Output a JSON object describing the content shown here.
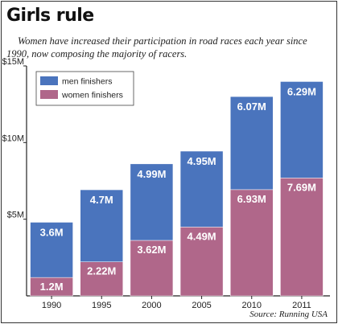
{
  "title": "Girls rule",
  "subtitle": "Women have increased their participation in road races each year since 1990, now composing the majority of racers.",
  "source": "Source: Running USA",
  "colors": {
    "men": "#4a74bd",
    "women": "#b0678a"
  },
  "chart_data": {
    "type": "bar",
    "stacked": true,
    "title": "Girls rule",
    "categories": [
      "1990",
      "1995",
      "2000",
      "2005",
      "2010",
      "2011"
    ],
    "series": [
      {
        "name": "women finishers",
        "values": [
          1.2,
          2.22,
          3.62,
          4.49,
          6.93,
          7.69
        ],
        "labels": [
          "1.2M",
          "2.22M",
          "3.62M",
          "4.49M",
          "6.93M",
          "7.69M"
        ]
      },
      {
        "name": "men finishers",
        "values": [
          3.6,
          4.7,
          4.99,
          4.95,
          6.07,
          6.29
        ],
        "labels": [
          "3.6M",
          "4.7M",
          "4.99M",
          "4.95M",
          "6.07M",
          "6.29M"
        ]
      }
    ],
    "legend_order": [
      "men finishers",
      "women finishers"
    ],
    "y_ticks": [
      5,
      10,
      15
    ],
    "y_tick_labels": [
      "$5M",
      "$10M",
      "$15M"
    ],
    "ylim": [
      0,
      15
    ],
    "legend_position": "top-left",
    "grid": false
  }
}
